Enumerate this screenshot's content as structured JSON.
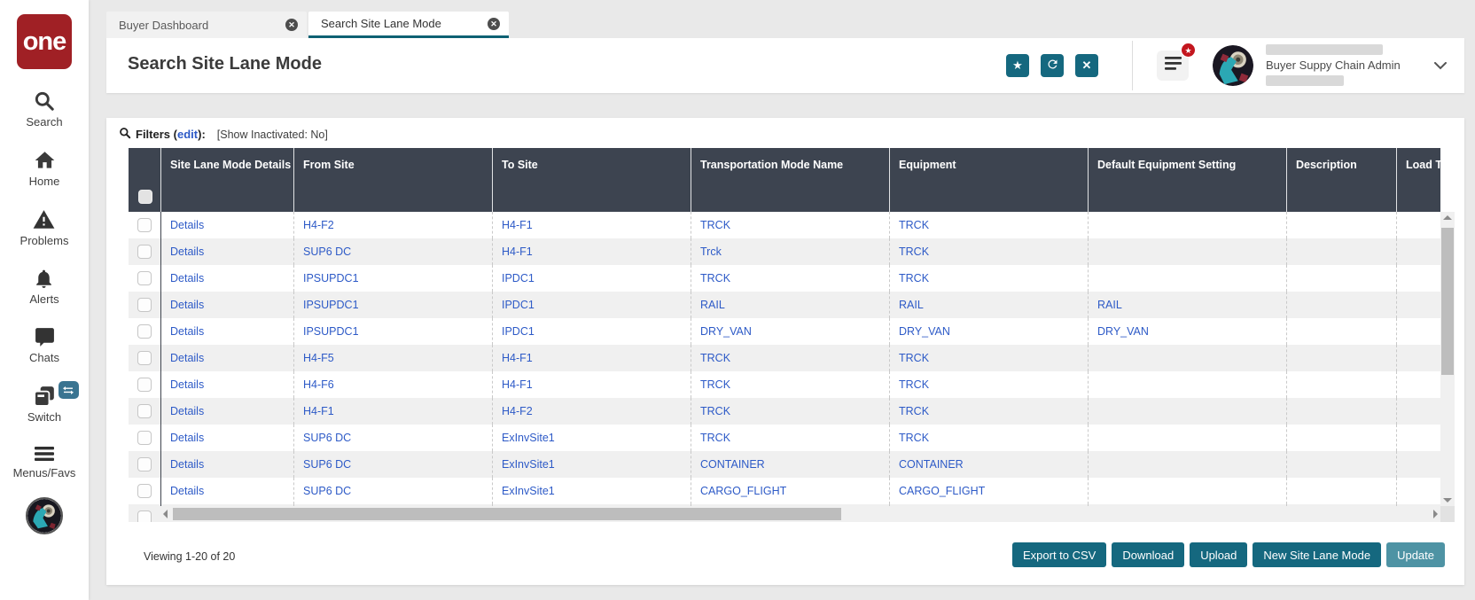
{
  "app": {
    "logo_text": "one"
  },
  "sidebar": {
    "items": [
      {
        "icon": "search-icon",
        "label": "Search"
      },
      {
        "icon": "home-icon",
        "label": "Home"
      },
      {
        "icon": "problems-icon",
        "label": "Problems"
      },
      {
        "icon": "alerts-icon",
        "label": "Alerts"
      },
      {
        "icon": "chats-icon",
        "label": "Chats"
      },
      {
        "icon": "switch-icon",
        "label": "Switch"
      },
      {
        "icon": "menus-icon",
        "label": "Menus/Favs"
      }
    ]
  },
  "tabs": [
    {
      "label": "Buyer Dashboard",
      "active": false
    },
    {
      "label": "Search Site Lane Mode",
      "active": true
    }
  ],
  "header": {
    "title": "Search Site Lane Mode",
    "actions": [
      {
        "icon": "star-icon"
      },
      {
        "icon": "refresh-icon"
      },
      {
        "icon": "close-icon"
      }
    ],
    "user_role": "Buyer Suppy Chain Admin"
  },
  "filters": {
    "label": "Filters",
    "pre": "(",
    "edit": "edit",
    "post": "):",
    "status": "[Show Inactivated: No]"
  },
  "table": {
    "details_label": "Details",
    "columns": [
      "Site Lane Mode Details",
      "From Site",
      "To Site",
      "Transportation Mode Name",
      "Equipment",
      "Default Equipment Setting",
      "Description",
      "Load Ty"
    ],
    "rows": [
      {
        "from": "H4-F2",
        "to": "H4-F1",
        "mode": "TRCK",
        "equipment": "TRCK",
        "default_equipment": "",
        "description": "",
        "load_type": ""
      },
      {
        "from": "SUP6 DC",
        "to": "H4-F1",
        "mode": "Trck",
        "equipment": "TRCK",
        "default_equipment": "",
        "description": "",
        "load_type": ""
      },
      {
        "from": "IPSUPDC1",
        "to": "IPDC1",
        "mode": "TRCK",
        "equipment": "TRCK",
        "default_equipment": "",
        "description": "",
        "load_type": ""
      },
      {
        "from": "IPSUPDC1",
        "to": "IPDC1",
        "mode": "RAIL",
        "equipment": "RAIL",
        "default_equipment": "RAIL",
        "description": "",
        "load_type": ""
      },
      {
        "from": "IPSUPDC1",
        "to": "IPDC1",
        "mode": "DRY_VAN",
        "equipment": "DRY_VAN",
        "default_equipment": "DRY_VAN",
        "description": "",
        "load_type": ""
      },
      {
        "from": "H4-F5",
        "to": "H4-F1",
        "mode": "TRCK",
        "equipment": "TRCK",
        "default_equipment": "",
        "description": "",
        "load_type": ""
      },
      {
        "from": "H4-F6",
        "to": "H4-F1",
        "mode": "TRCK",
        "equipment": "TRCK",
        "default_equipment": "",
        "description": "",
        "load_type": ""
      },
      {
        "from": "H4-F1",
        "to": "H4-F2",
        "mode": "TRCK",
        "equipment": "TRCK",
        "default_equipment": "",
        "description": "",
        "load_type": ""
      },
      {
        "from": "SUP6 DC",
        "to": "ExInvSite1",
        "mode": "TRCK",
        "equipment": "TRCK",
        "default_equipment": "",
        "description": "",
        "load_type": ""
      },
      {
        "from": "SUP6 DC",
        "to": "ExInvSite1",
        "mode": "CONTAINER",
        "equipment": "CONTAINER",
        "default_equipment": "",
        "description": "",
        "load_type": ""
      },
      {
        "from": "SUP6 DC",
        "to": "ExInvSite1",
        "mode": "CARGO_FLIGHT",
        "equipment": "CARGO_FLIGHT",
        "default_equipment": "",
        "description": "",
        "load_type": ""
      }
    ],
    "partial_row": true
  },
  "footer": {
    "viewing": "Viewing 1-20 of 20",
    "buttons": [
      {
        "label": "Export to CSV",
        "variant": "dark"
      },
      {
        "label": "Download",
        "variant": "dark"
      },
      {
        "label": "Upload",
        "variant": "dark"
      },
      {
        "label": "New Site Lane Mode",
        "variant": "dark"
      },
      {
        "label": "Update",
        "variant": "light"
      }
    ]
  },
  "colors": {
    "teal": "#15687f",
    "teal_light": "#4e93a4",
    "tab_accent": "#0d6173",
    "table_header_bg": "#3d4450",
    "link_blue": "#2d5ac7",
    "logo_red": "#a02025",
    "badge_red": "#c3161e",
    "switch_badge_blue": "#3a7491"
  }
}
